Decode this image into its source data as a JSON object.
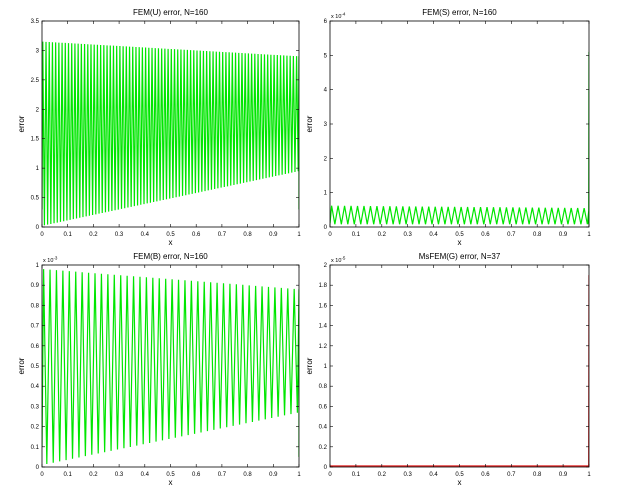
{
  "chart_data": [
    {
      "type": "line",
      "title": "FEM(U) error, N=160",
      "xlabel": "x",
      "ylabel": "error",
      "xlim": [
        0,
        1
      ],
      "ylim": [
        0,
        3.5
      ],
      "xticks": [
        "0",
        "0.1",
        "0.2",
        "0.3",
        "0.4",
        "0.5",
        "0.6",
        "0.7",
        "0.8",
        "0.9",
        "1"
      ],
      "yticks": [
        "0",
        "0.5",
        "1",
        "1.5",
        "2",
        "2.5",
        "3",
        "3.5"
      ],
      "exponent": "",
      "color": "#00e600",
      "grid": false,
      "series": [
        {
          "pattern": "oscillation between a lower and an upper envelope",
          "teeth": 80,
          "upper": {
            "x": [
              0,
              1
            ],
            "y": [
              3.15,
              2.9
            ]
          },
          "lower": {
            "x": [
              0,
              1
            ],
            "y": [
              0.02,
              0.95
            ]
          },
          "start_y": 0.3,
          "end_drop_y": 0.3
        }
      ]
    },
    {
      "type": "line",
      "title": "FEM(S) error, N=160",
      "xlabel": "x",
      "ylabel": "error",
      "xlim": [
        0,
        1
      ],
      "ylim": [
        0,
        6
      ],
      "xticks": [
        "0",
        "0.1",
        "0.2",
        "0.3",
        "0.4",
        "0.5",
        "0.6",
        "0.7",
        "0.8",
        "0.9",
        "1"
      ],
      "yticks": [
        "0",
        "1",
        "2",
        "3",
        "4",
        "5",
        "6"
      ],
      "exponent": "-4",
      "color": "#00e600",
      "grid": false,
      "series": [
        {
          "pattern": "oscillation between a lower and an upper envelope",
          "teeth": 40,
          "upper": {
            "x": [
              0,
              1
            ],
            "y": [
              0.62,
              0.55
            ]
          },
          "lower": {
            "x": [
              0,
              1
            ],
            "y": [
              0.08,
              0.08
            ]
          },
          "start_y": 0.1,
          "end_spike_y": 5.1
        }
      ]
    },
    {
      "type": "line",
      "title": "FEM(B) error, N=160",
      "xlabel": "x",
      "ylabel": "error",
      "xlim": [
        0,
        1
      ],
      "ylim": [
        0,
        1
      ],
      "xticks": [
        "0",
        "0.1",
        "0.2",
        "0.3",
        "0.4",
        "0.5",
        "0.6",
        "0.7",
        "0.8",
        "0.9",
        "1"
      ],
      "yticks": [
        "0",
        "0.1",
        "0.2",
        "0.3",
        "0.4",
        "0.5",
        "0.6",
        "0.7",
        "0.8",
        "0.9",
        "1"
      ],
      "exponent": "-3",
      "color": "#00e600",
      "grid": false,
      "series": [
        {
          "pattern": "oscillation between a lower and an upper envelope",
          "teeth": 40,
          "upper": {
            "x": [
              0,
              1
            ],
            "y": [
              0.98,
              0.88
            ]
          },
          "lower": {
            "x": [
              0,
              1
            ],
            "y": [
              0.01,
              0.27
            ]
          },
          "start_y": 0.1,
          "end_drop_y": 0.05
        }
      ]
    },
    {
      "type": "line",
      "title": "MsFEM(G) error, N=37",
      "xlabel": "x",
      "ylabel": "error",
      "xlim": [
        0,
        1
      ],
      "ylim": [
        0,
        2
      ],
      "xticks": [
        "0",
        "0.1",
        "0.2",
        "0.3",
        "0.4",
        "0.5",
        "0.6",
        "0.7",
        "0.8",
        "0.9",
        "1"
      ],
      "yticks": [
        "0",
        "0.2",
        "0.4",
        "0.6",
        "0.8",
        "1",
        "1.2",
        "1.4",
        "1.6",
        "1.8",
        "2"
      ],
      "exponent": "-5",
      "color": "#dd1111",
      "grid": false,
      "series": [
        {
          "pattern": "near-zero flat line with a spike at x = 1",
          "x": [
            0,
            0.999,
            1
          ],
          "y": [
            0.01,
            0.01,
            1.9
          ]
        }
      ]
    }
  ]
}
